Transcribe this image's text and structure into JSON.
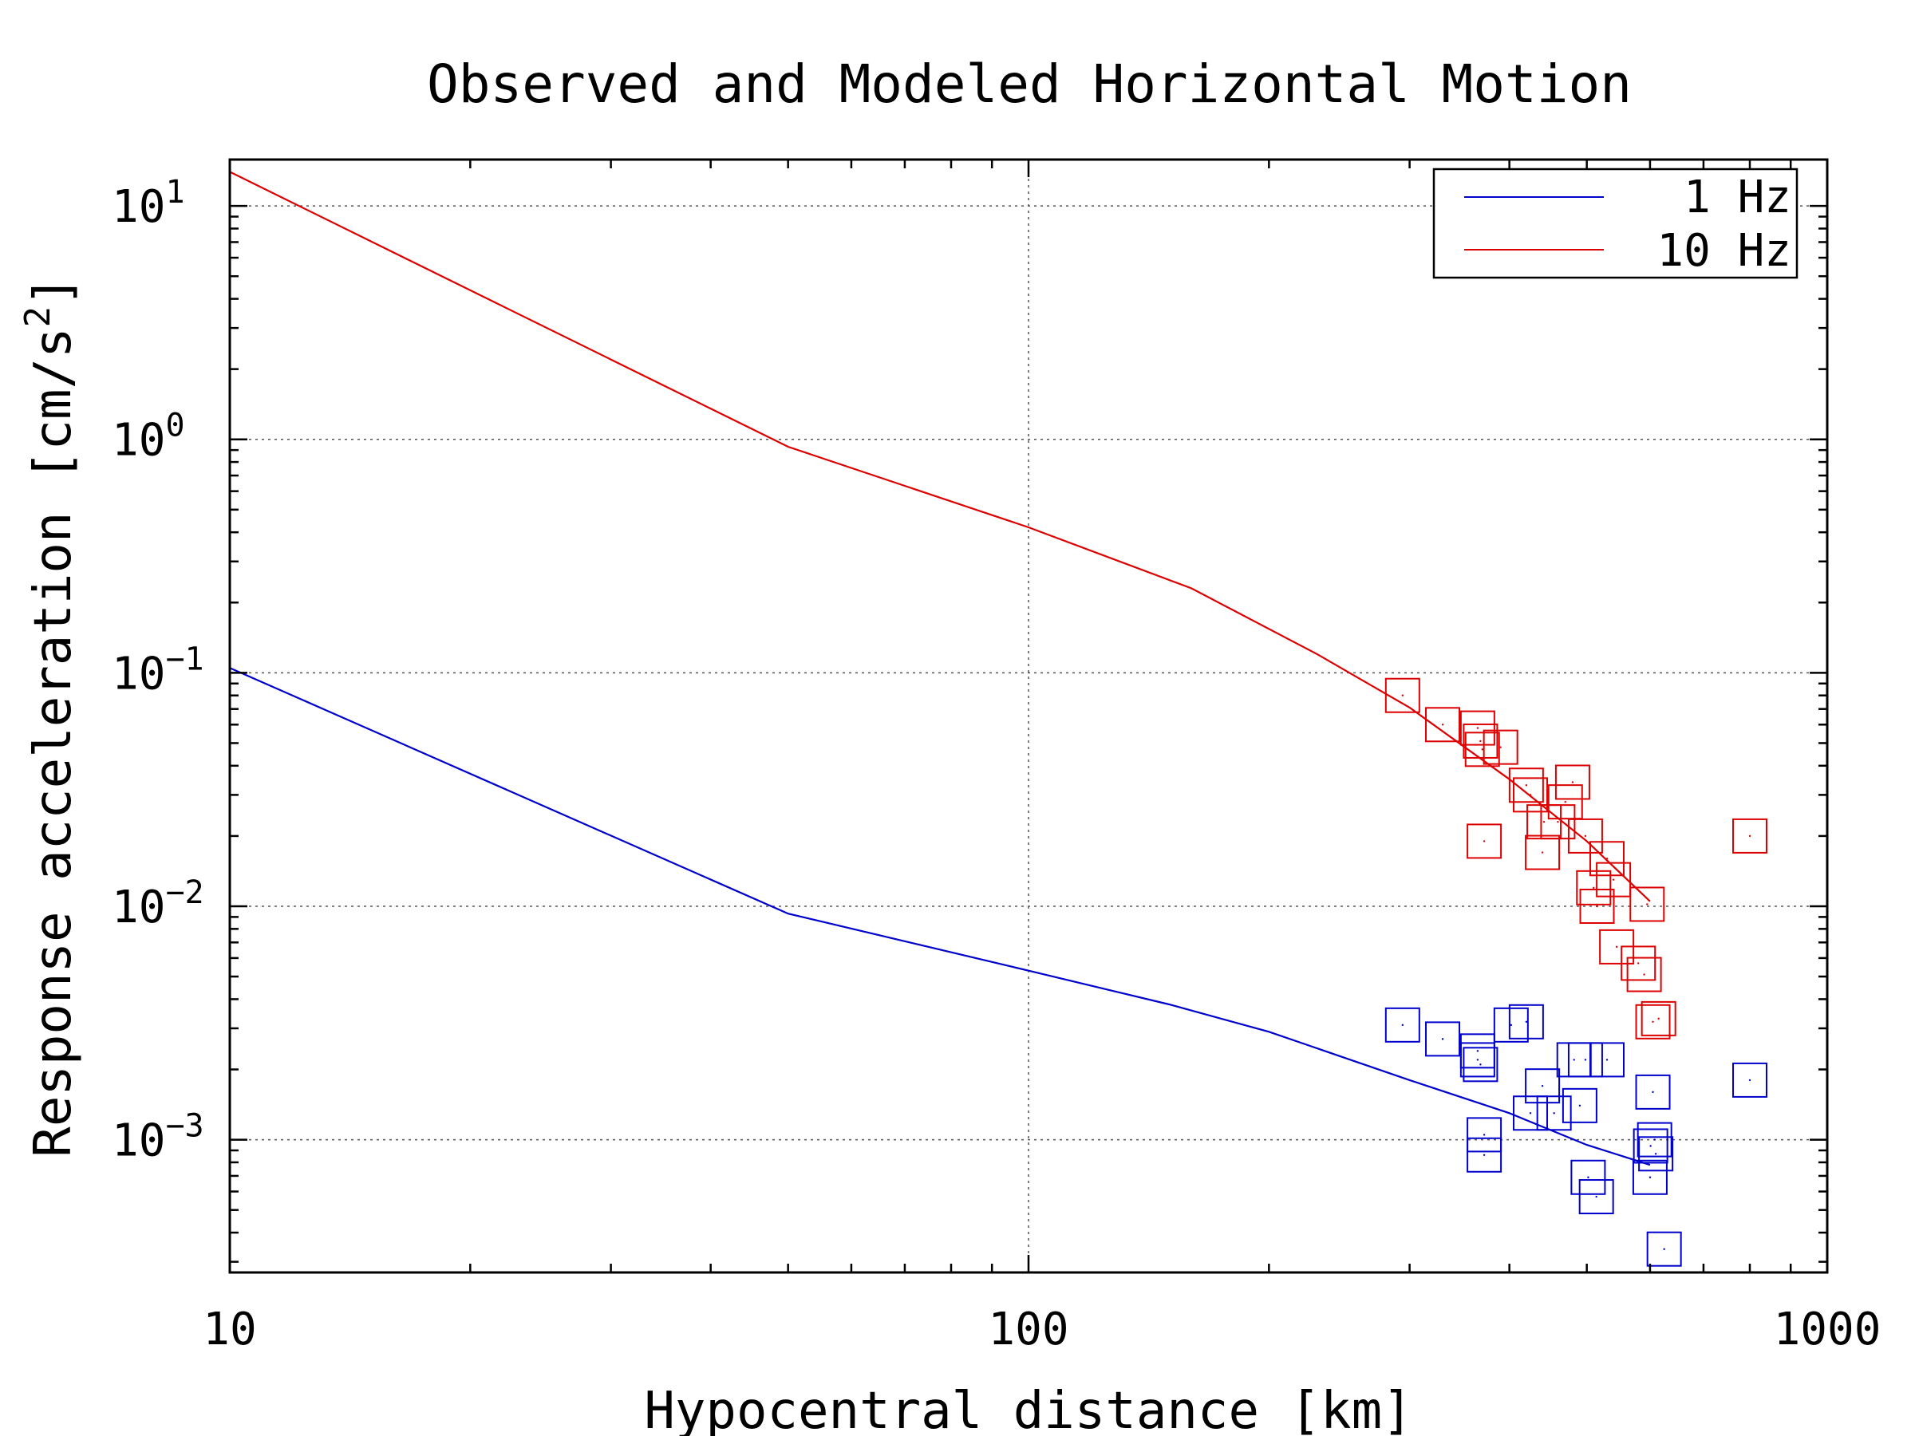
{
  "chart_data": {
    "type": "scatter",
    "title": "Observed and Modeled Horizontal Motion",
    "xlabel": "Hypocentral distance [km]",
    "ylabel": "Response acceleration [cm/s",
    "ylabel_sup": "2",
    "ylabel_tail": "]",
    "x_scale": "log",
    "y_scale": "log",
    "xlim": [
      10,
      1000
    ],
    "ylim": [
      0.00027,
      15.8
    ],
    "x_ticks": [
      {
        "value": 10,
        "label": "10"
      },
      {
        "value": 100,
        "label": "100"
      },
      {
        "value": 1000,
        "label": "1000"
      }
    ],
    "y_ticks": [
      {
        "value": 10,
        "base": "10",
        "exp": "1"
      },
      {
        "value": 1,
        "base": "10",
        "exp": "0"
      },
      {
        "value": 0.1,
        "base": "10",
        "exp": "−1"
      },
      {
        "value": 0.01,
        "base": "10",
        "exp": "−2"
      },
      {
        "value": 0.001,
        "base": "10",
        "exp": "−3"
      }
    ],
    "grid": true,
    "legend_position": "top-right",
    "colors": {
      "1 Hz": "#0000cc",
      "10 Hz": "#dd0000",
      "axis": "#000000",
      "grid": "#555555"
    },
    "series": [
      {
        "name": "1 Hz",
        "color": "#0000cc",
        "model_line": {
          "x": [
            10,
            50,
            100,
            150,
            200,
            300,
            400,
            500,
            600
          ],
          "y": [
            0.105,
            0.0093,
            0.0053,
            0.0038,
            0.0029,
            0.0018,
            0.0013,
            0.00095,
            0.00078
          ]
        },
        "observed": {
          "x": [
            294,
            330,
            365,
            365,
            368,
            372,
            372,
            402,
            420,
            425,
            440,
            455,
            482,
            490,
            498,
            502,
            514,
            530,
            600,
            601,
            605,
            608,
            610,
            625,
            800
          ],
          "y": [
            0.0031,
            0.0027,
            0.0024,
            0.0022,
            0.0021,
            0.00105,
            0.00086,
            0.0031,
            0.0032,
            0.0013,
            0.0017,
            0.0013,
            0.0022,
            0.0014,
            0.0022,
            0.00069,
            0.00057,
            0.0022,
            0.00069,
            0.00094,
            0.0016,
            0.001,
            0.00087,
            0.00034,
            0.0018
          ]
        }
      },
      {
        "name": "10 Hz",
        "color": "#dd0000",
        "model_line": {
          "x": [
            10,
            50,
            100,
            160,
            230,
            300,
            400,
            500,
            600
          ],
          "y": [
            14.0,
            0.93,
            0.42,
            0.23,
            0.12,
            0.071,
            0.035,
            0.019,
            0.0105
          ]
        },
        "observed": {
          "x": [
            294,
            330,
            365,
            368,
            370,
            372,
            390,
            420,
            425,
            440,
            442,
            460,
            470,
            480,
            498,
            510,
            515,
            530,
            540,
            545,
            580,
            590,
            595,
            605,
            615,
            800
          ],
          "y": [
            0.08,
            0.06,
            0.058,
            0.051,
            0.047,
            0.019,
            0.048,
            0.033,
            0.03,
            0.017,
            0.023,
            0.023,
            0.028,
            0.034,
            0.02,
            0.012,
            0.01,
            0.016,
            0.013,
            0.0067,
            0.0057,
            0.0051,
            0.0102,
            0.0032,
            0.0033,
            0.02
          ]
        }
      }
    ]
  }
}
